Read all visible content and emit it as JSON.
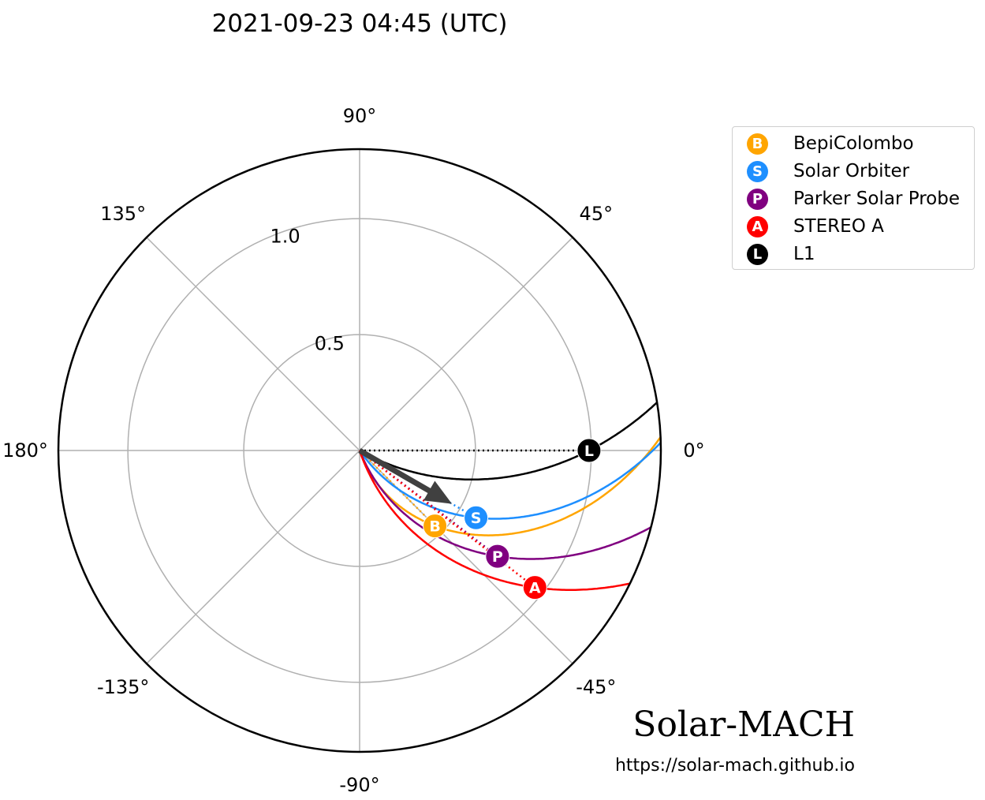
{
  "title": "2021-09-23 04:45 (UTC)",
  "branding": {
    "name": "Solar-MACH",
    "url": "https://solar-mach.github.io"
  },
  "chart_data": {
    "type": "polar",
    "radial_ticks": [
      0.5,
      1.0
    ],
    "radial_tick_labels": [
      "0.5",
      "1.0"
    ],
    "rmax": 1.3,
    "angle_ticks": [
      0,
      45,
      90,
      135,
      180,
      -135,
      -90,
      -45
    ],
    "angle_tick_labels": [
      "0°",
      "45°",
      "90°",
      "135°",
      "180°",
      "-135°",
      "-90°",
      "-45°"
    ],
    "grid": true,
    "reference_arrow": {
      "longitude": -30,
      "length": 0.35,
      "color": "#404040"
    },
    "bodies": [
      {
        "name": "BepiColombo",
        "letter": "B",
        "color": "#ffa500",
        "r": 0.46,
        "lon": -45.0,
        "b": 0.46
      },
      {
        "name": "Solar Orbiter",
        "letter": "S",
        "color": "#1e8fff",
        "r": 0.58,
        "lon": -30.0,
        "b": 0.595
      },
      {
        "name": "Parker Solar Probe",
        "letter": "P",
        "color": "#800080",
        "r": 0.75,
        "lon": -37.5,
        "b": 0.63
      },
      {
        "name": "STEREO A",
        "letter": "A",
        "color": "#ff0000",
        "r": 0.96,
        "lon": -38.0,
        "b": 0.75
      },
      {
        "name": "L1",
        "letter": "L",
        "color": "#000000",
        "r": 0.99,
        "lon": 0.0,
        "b": 0.88
      }
    ],
    "legend_position": "top-right"
  }
}
